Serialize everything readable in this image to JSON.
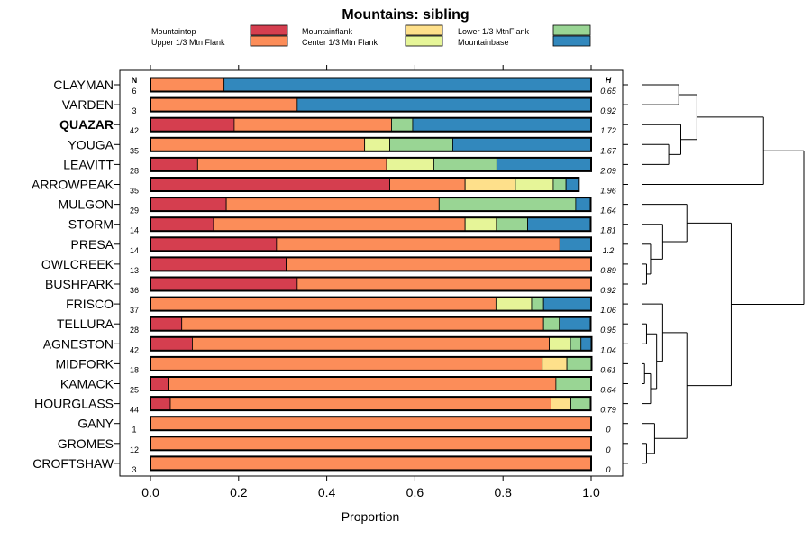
{
  "chart_data": {
    "type": "bar",
    "orientation": "horizontal",
    "stacked": true,
    "title": "Mountains: sibling",
    "xlabel": "Proportion",
    "xlim": [
      0,
      1
    ],
    "xticks": [
      0,
      0.2,
      0.4,
      0.6,
      0.8,
      1
    ],
    "xtick_labels": [
      "0.0",
      "0.2",
      "0.4",
      "0.6",
      "0.8",
      "1.0"
    ],
    "n_header": "N",
    "h_header": "H",
    "legend_position": "top",
    "series": [
      {
        "name": "Mountaintop",
        "color": "#d53e4f"
      },
      {
        "name": "Upper 1/3 Mtn Flank",
        "color": "#fc8d59"
      },
      {
        "name": "Mountainflank",
        "color": "#fee08b"
      },
      {
        "name": "Center 1/3 Mtn Flank",
        "color": "#e6f598"
      },
      {
        "name": "Lower 1/3 MtnFlank",
        "color": "#99d594"
      },
      {
        "name": "Mountainbase",
        "color": "#3288bd"
      }
    ],
    "rows": [
      {
        "label": "CLAYMAN",
        "n": "6",
        "h": "0.65",
        "bold": false,
        "values": [
          0,
          0.167,
          0,
          0,
          0,
          0.833
        ]
      },
      {
        "label": "VARDEN",
        "n": "3",
        "h": "0.92",
        "bold": false,
        "values": [
          0,
          0.333,
          0,
          0,
          0,
          0.667
        ]
      },
      {
        "label": "QUAZAR",
        "n": "42",
        "h": "1.72",
        "bold": true,
        "values": [
          0.19,
          0.357,
          0,
          0,
          0.048,
          0.405
        ]
      },
      {
        "label": "YOUGA",
        "n": "35",
        "h": "1.67",
        "bold": false,
        "values": [
          0,
          0.486,
          0,
          0.057,
          0.143,
          0.314
        ]
      },
      {
        "label": "LEAVITT",
        "n": "28",
        "h": "2.09",
        "bold": false,
        "values": [
          0.107,
          0.429,
          0,
          0.107,
          0.143,
          0.214
        ]
      },
      {
        "label": "ARROWPEAK",
        "n": "35",
        "h": "1.96",
        "bold": false,
        "values": [
          0.543,
          0.171,
          0.114,
          0.086,
          0.029,
          0.029
        ]
      },
      {
        "label": "MULGON",
        "n": "29",
        "h": "1.64",
        "bold": false,
        "values": [
          0.172,
          0.483,
          0,
          0,
          0.31,
          0.034
        ]
      },
      {
        "label": "STORM",
        "n": "14",
        "h": "1.81",
        "bold": false,
        "values": [
          0.143,
          0.571,
          0,
          0.071,
          0.071,
          0.143
        ]
      },
      {
        "label": "PRESA",
        "n": "14",
        "h": "1.2",
        "bold": false,
        "values": [
          0.286,
          0.643,
          0,
          0,
          0,
          0.071
        ]
      },
      {
        "label": "OWLCREEK",
        "n": "13",
        "h": "0.89",
        "bold": false,
        "values": [
          0.308,
          0.692,
          0,
          0,
          0,
          0
        ]
      },
      {
        "label": "BUSHPARK",
        "n": "36",
        "h": "0.92",
        "bold": false,
        "values": [
          0.333,
          0.667,
          0,
          0,
          0,
          0
        ]
      },
      {
        "label": "FRISCO",
        "n": "37",
        "h": "1.06",
        "bold": false,
        "values": [
          0,
          0.784,
          0,
          0.081,
          0.027,
          0.108
        ]
      },
      {
        "label": "TELLURA",
        "n": "28",
        "h": "0.95",
        "bold": false,
        "values": [
          0.071,
          0.821,
          0,
          0,
          0.036,
          0.071
        ]
      },
      {
        "label": "AGNESTON",
        "n": "42",
        "h": "1.04",
        "bold": false,
        "values": [
          0.095,
          0.81,
          0,
          0.048,
          0.024,
          0.024
        ]
      },
      {
        "label": "MIDFORK",
        "n": "18",
        "h": "0.61",
        "bold": false,
        "values": [
          0,
          0.889,
          0.056,
          0,
          0.056,
          0
        ]
      },
      {
        "label": "KAMACK",
        "n": "25",
        "h": "0.64",
        "bold": false,
        "values": [
          0.04,
          0.88,
          0,
          0,
          0.08,
          0
        ]
      },
      {
        "label": "HOURGLASS",
        "n": "44",
        "h": "0.79",
        "bold": false,
        "values": [
          0.045,
          0.864,
          0.045,
          0,
          0.045,
          0
        ]
      },
      {
        "label": "GANY",
        "n": "1",
        "h": "0",
        "bold": false,
        "values": [
          0,
          1,
          0,
          0,
          0,
          0
        ]
      },
      {
        "label": "GROMES",
        "n": "12",
        "h": "0",
        "bold": false,
        "values": [
          0,
          1,
          0,
          0,
          0,
          0
        ]
      },
      {
        "label": "CROFTSHAW",
        "n": "3",
        "h": "0",
        "bold": false,
        "values": [
          0,
          1,
          0,
          0,
          0,
          0
        ]
      }
    ],
    "dendrogram": [
      {
        "id": "a",
        "left": 0,
        "right": 1,
        "height": 0.9
      },
      {
        "id": "b",
        "left": 3,
        "right": 4,
        "height": 0.65
      },
      {
        "id": "c",
        "left": 2,
        "right": "b",
        "height": 0.95
      },
      {
        "id": "d",
        "left": "a",
        "right": "c",
        "height": 1.35
      },
      {
        "id": "e",
        "left": "d",
        "right": 5,
        "height": 3.0
      },
      {
        "id": "f",
        "left": 9,
        "right": 10,
        "height": 0.1
      },
      {
        "id": "g",
        "left": 8,
        "right": "f",
        "height": 0.2
      },
      {
        "id": "h",
        "left": 7,
        "right": "g",
        "height": 0.5
      },
      {
        "id": "i",
        "left": 6,
        "right": "h",
        "height": 1.1
      },
      {
        "id": "j",
        "left": 12,
        "right": 13,
        "height": 0.1
      },
      {
        "id": "k",
        "left": 14,
        "right": 15,
        "height": 0.05
      },
      {
        "id": "l",
        "left": "k",
        "right": 16,
        "height": 0.2
      },
      {
        "id": "m",
        "left": "j",
        "right": "l",
        "height": 0.35
      },
      {
        "id": "n",
        "left": 11,
        "right": "m",
        "height": 0.5
      },
      {
        "id": "o",
        "left": 18,
        "right": 19,
        "height": 0.1
      },
      {
        "id": "p",
        "left": 17,
        "right": "o",
        "height": 0.3
      },
      {
        "id": "q",
        "left": "n",
        "right": "p",
        "height": 1.1
      },
      {
        "id": "r",
        "left": "i",
        "right": "q",
        "height": 2.2
      },
      {
        "id": "s",
        "left": "e",
        "right": "r",
        "height": 4.0
      }
    ]
  }
}
